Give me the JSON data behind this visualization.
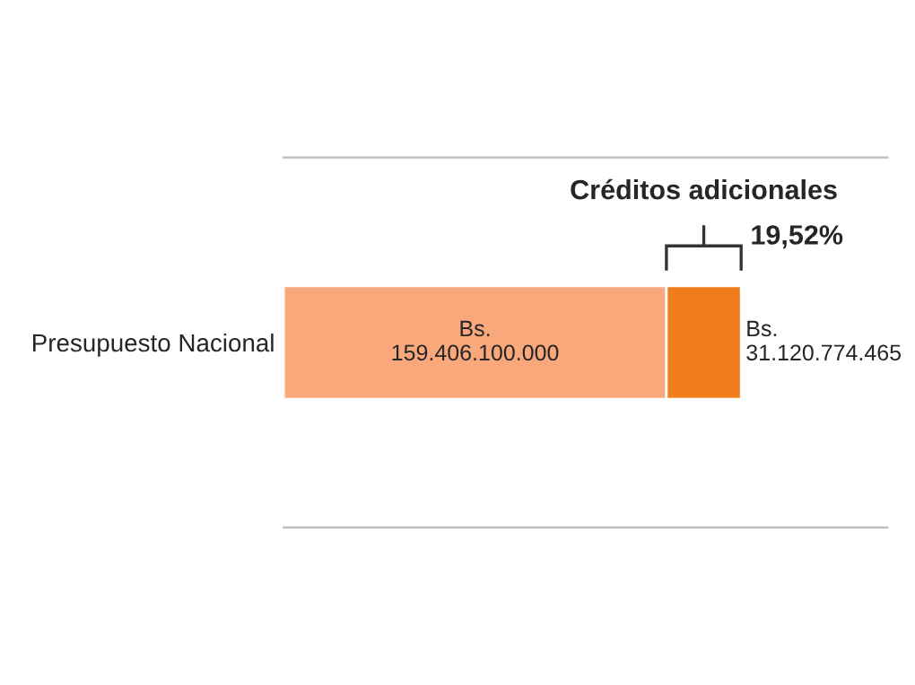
{
  "chart_data": {
    "type": "bar",
    "orientation": "horizontal",
    "stacked": true,
    "categories": [
      "Presupuesto Nacional"
    ],
    "series": [
      {
        "color": "#f9a87c",
        "values": [
          159406100000
        ],
        "value_labels": [
          "Bs. 159.406.100.000"
        ]
      },
      {
        "color": "#f07d1c",
        "values": [
          31120774465
        ],
        "value_labels": [
          "Bs. 31.120.774.465"
        ]
      }
    ],
    "annotations": [
      "Créditos adicionales",
      "19,52%"
    ],
    "tick_labels": "y",
    "grid": false
  }
}
